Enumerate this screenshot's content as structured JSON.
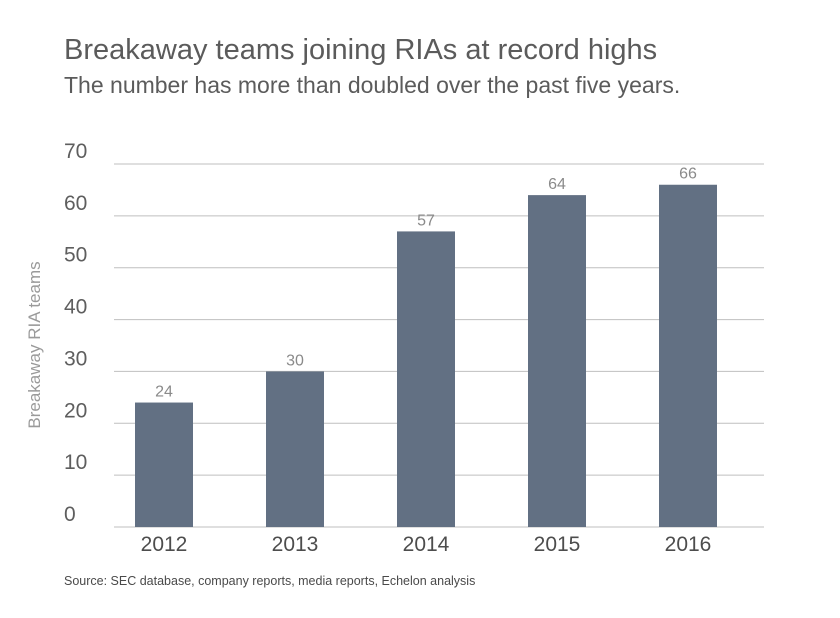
{
  "title": "Breakaway teams joining RIAs at record highs",
  "subtitle": "The number has more than doubled over the past five years.",
  "source": "Source: SEC database, company reports, media reports, Echelon analysis",
  "colors": {
    "bar": "#627083",
    "grid": "#bfbfbf"
  },
  "chart_data": {
    "type": "bar",
    "categories": [
      "2012",
      "2013",
      "2014",
      "2015",
      "2016"
    ],
    "values": [
      24,
      30,
      57,
      64,
      66
    ],
    "data_labels": [
      "24",
      "30",
      "57",
      "64",
      "66"
    ],
    "ylabel": "Breakaway RIA teams",
    "xlabel": "",
    "ylim": [
      0,
      70
    ],
    "yticks": [
      0,
      10,
      20,
      30,
      40,
      50,
      60,
      70
    ],
    "grid": true
  }
}
